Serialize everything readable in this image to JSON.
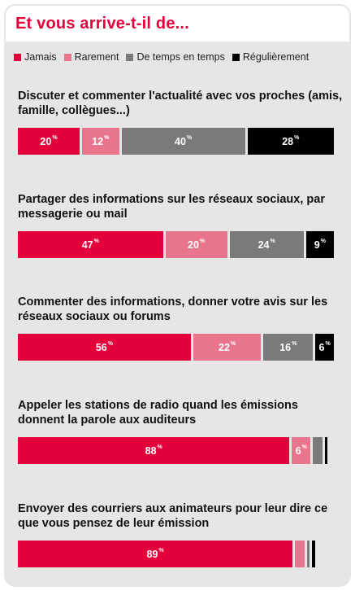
{
  "title": "Et vous arrive-t-il de...",
  "legend": [
    {
      "label": "Jamais",
      "color": "#e4003a"
    },
    {
      "label": "Rarement",
      "color": "#e8758c"
    },
    {
      "label": "De temps en temps",
      "color": "#7a7a7a"
    },
    {
      "label": "Régulièrement",
      "color": "#000000"
    }
  ],
  "chart_data": {
    "type": "bar",
    "orientation": "horizontal",
    "stacked": true,
    "unit": "%",
    "series_names": [
      "Jamais",
      "Rarement",
      "De temps en temps",
      "Régulièrement"
    ],
    "rows": [
      {
        "label": "Discuter et commenter l'actualité avec vos proches (amis, famille, collègues...)",
        "values": [
          20,
          12,
          40,
          28
        ]
      },
      {
        "label": "Partager des informations sur les réseaux sociaux, par messagerie ou mail",
        "values": [
          47,
          20,
          24,
          9
        ]
      },
      {
        "label": "Commenter des informations, donner votre avis sur les réseaux sociaux ou forums",
        "values": [
          56,
          22,
          16,
          6
        ]
      },
      {
        "label": "Appeler les stations de radio quand les émissions donnent la parole aux auditeurs",
        "values": [
          88,
          6,
          3,
          1
        ]
      },
      {
        "label": "Envoyer des courriers aux animateurs pour leur dire ce que vous pensez de leur émission",
        "values": [
          89,
          3,
          1,
          1
        ]
      }
    ]
  }
}
